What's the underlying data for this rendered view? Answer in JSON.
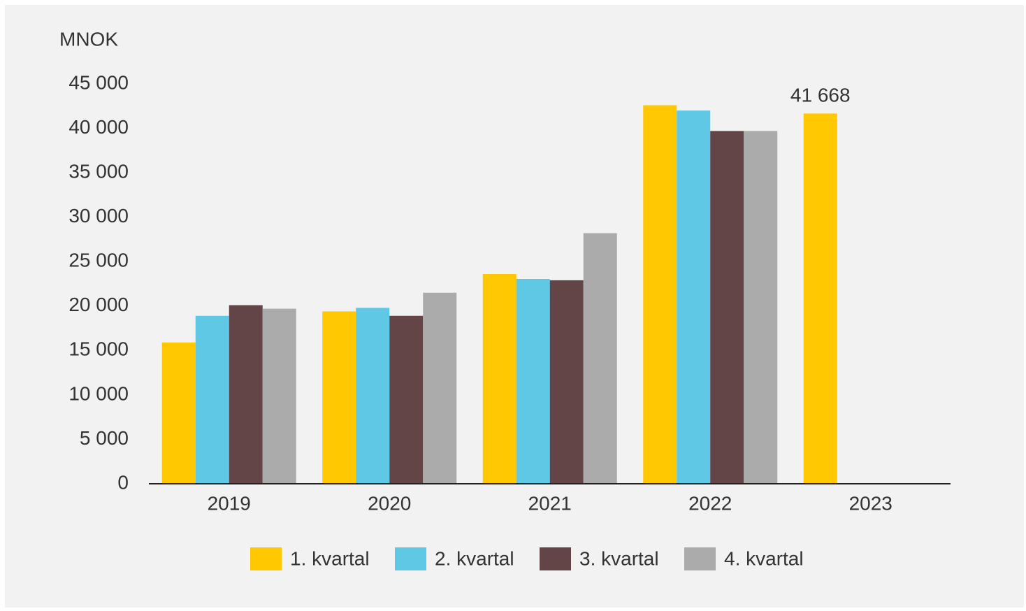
{
  "chart_data": {
    "type": "bar",
    "y_label": "MNOK",
    "categories": [
      "2019",
      "2020",
      "2021",
      "2022",
      "2023"
    ],
    "series": [
      {
        "name": "1. kvartal",
        "color": "#ffc800",
        "values": [
          15900,
          19400,
          23600,
          42600,
          41668
        ],
        "value_labels": [
          null,
          null,
          null,
          null,
          "41 668"
        ]
      },
      {
        "name": "2. kvartal",
        "color": "#5ec8e5",
        "values": [
          18900,
          19800,
          23050,
          42000,
          null
        ]
      },
      {
        "name": "3. kvartal",
        "color": "#634548",
        "values": [
          20100,
          18900,
          22900,
          39700,
          null
        ]
      },
      {
        "name": "4. kvartal",
        "color": "#ababab",
        "values": [
          19700,
          21500,
          28200,
          39700,
          null
        ]
      }
    ],
    "ylim": [
      0,
      45000
    ],
    "yticks": [
      0,
      {
        "value": 5000,
        "label": "5 000"
      },
      {
        "value": 10000,
        "label": "10 000"
      },
      {
        "value": 15000,
        "label": "15 000"
      },
      {
        "value": 20000,
        "label": "20 000"
      },
      {
        "value": 25000,
        "label": "25 000"
      },
      {
        "value": 30000,
        "label": "30 000"
      },
      {
        "value": 35000,
        "label": "35 000"
      },
      {
        "value": 40000,
        "label": "40 000"
      },
      {
        "value": 45000,
        "label": "45 000"
      }
    ],
    "legend": "bottom"
  }
}
